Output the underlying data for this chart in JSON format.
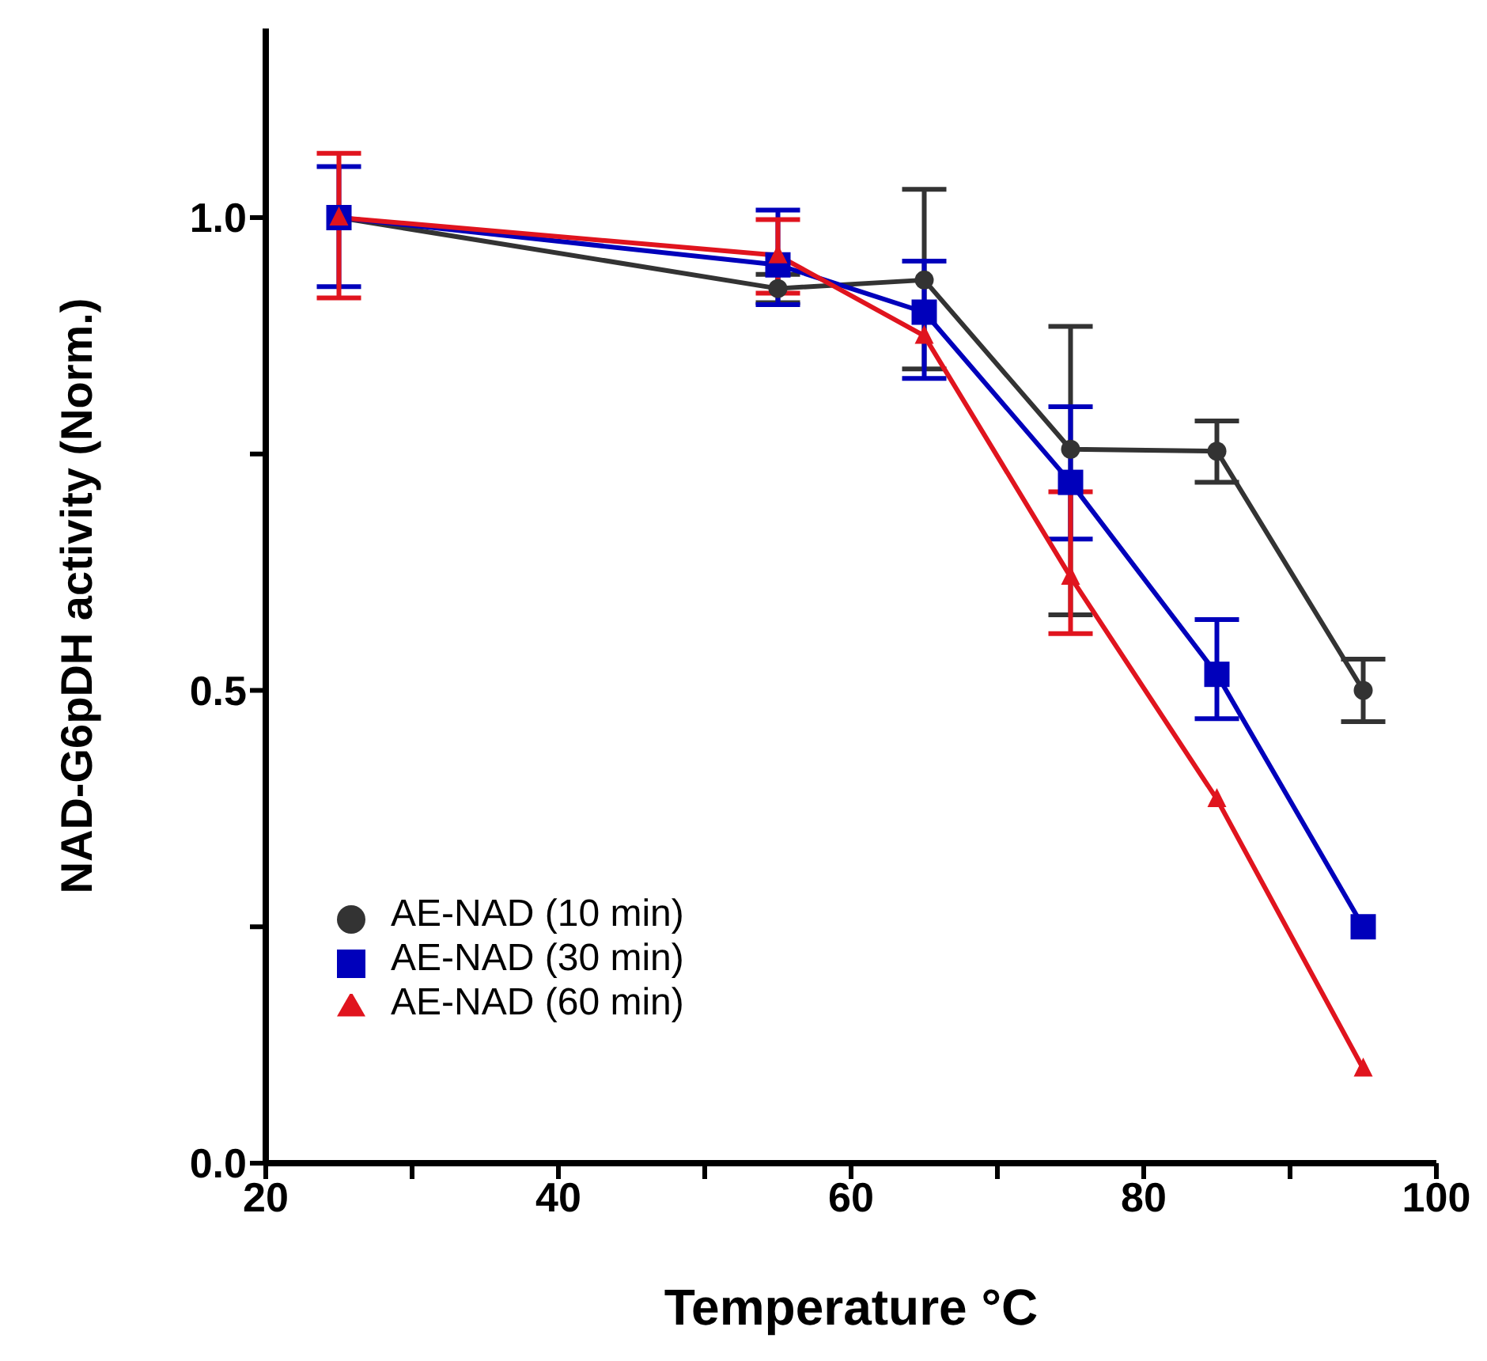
{
  "chart_data": {
    "type": "line",
    "xlabel": "Temperature °C",
    "ylabel": "NAD-G6pDH activity (Norm.)",
    "x": [
      25,
      55,
      65,
      75,
      85,
      95
    ],
    "series": [
      {
        "name": "AE-NAD (10 min)",
        "color": "#333333",
        "marker": "circle",
        "values": [
          1.0,
          0.925,
          0.934,
          0.755,
          0.753,
          0.5
        ],
        "errors": [
          null,
          [
            0.91,
            0.94
          ],
          [
            0.84,
            1.03
          ],
          [
            0.58,
            0.885
          ],
          [
            0.72,
            0.785
          ],
          [
            0.467,
            0.533
          ]
        ]
      },
      {
        "name": "AE-NAD (30 min)",
        "color": "#0000bb",
        "marker": "square",
        "values": [
          1.0,
          0.95,
          0.9,
          0.72,
          0.517,
          0.25
        ],
        "errors": [
          [
            0.927,
            1.054
          ],
          [
            0.908,
            1.008
          ],
          [
            0.83,
            0.954
          ],
          [
            0.66,
            0.8
          ],
          [
            0.47,
            0.575
          ],
          null
        ]
      },
      {
        "name": "AE-NAD (60 min)",
        "color": "#e0141e",
        "marker": "triangle",
        "values": [
          1.0,
          0.96,
          0.875,
          0.62,
          0.385,
          0.1
        ],
        "errors": [
          [
            0.915,
            1.068
          ],
          [
            0.92,
            0.998
          ],
          null,
          [
            0.56,
            0.71
          ],
          null,
          null
        ]
      }
    ],
    "xlim": [
      20,
      100
    ],
    "xticks": [
      20,
      {
        "value": 30,
        "label": null
      },
      40,
      {
        "value": 50,
        "label": null
      },
      60,
      {
        "value": 70,
        "label": null
      },
      80,
      {
        "value": 90,
        "label": null
      },
      100
    ],
    "ylim": [
      0,
      1.2
    ],
    "yticks": [
      {
        "value": 0,
        "label": "0.0"
      },
      {
        "value": 0.25,
        "label": null
      },
      {
        "value": 0.5,
        "label": "0.5"
      },
      {
        "value": 0.75,
        "label": null
      },
      {
        "value": 1,
        "label": "1.0"
      }
    ],
    "grid": false,
    "legend": "bottom left",
    "line_style": "solid"
  }
}
